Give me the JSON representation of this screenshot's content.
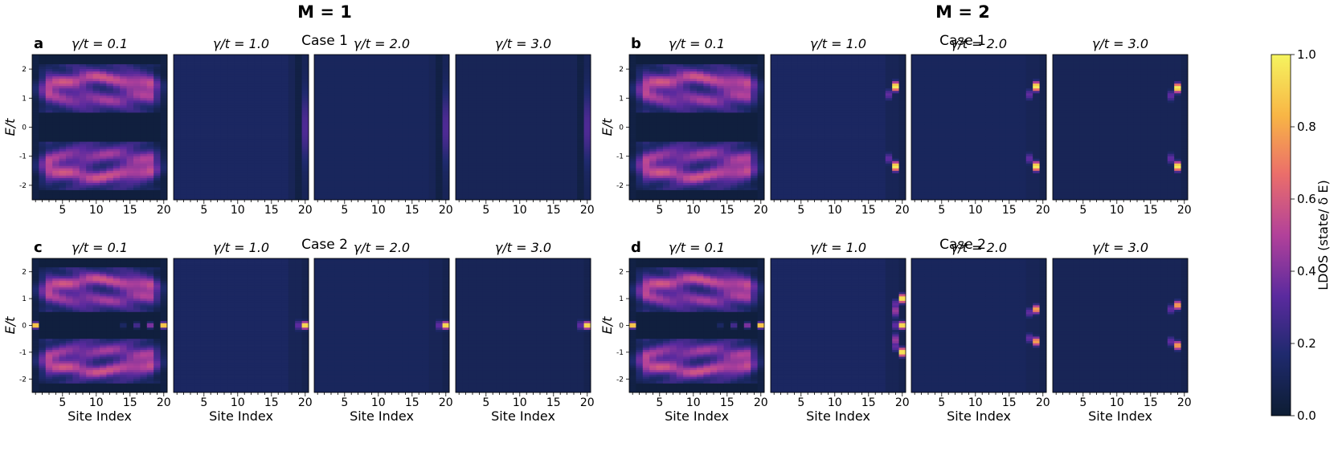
{
  "figure": {
    "group_titles": [
      "M = 1",
      "M = 2"
    ],
    "case_labels": [
      "Case 1",
      "Case 2"
    ],
    "panel_letters": [
      "a",
      "b",
      "c",
      "d"
    ]
  },
  "chart_data": {
    "type": "heatmap",
    "x_label": "Site Index",
    "y_label": "E/t",
    "x_ticks": [
      5,
      10,
      15,
      20
    ],
    "x_range": [
      0.5,
      20.5
    ],
    "y_ticks": [
      2,
      1,
      0,
      -1,
      -2
    ],
    "y_range": [
      -2.5,
      2.5
    ],
    "gamma_labels": [
      "γ/t = 0.1",
      "γ/t = 1.0",
      "γ/t = 2.0",
      "γ/t = 3.0"
    ],
    "gamma_values": [
      0.1,
      1.0,
      2.0,
      3.0
    ],
    "colorbar": {
      "label": "LDOS (state/ δ E)",
      "ticks": [
        "0.0",
        "0.2",
        "0.4",
        "0.6",
        "0.8",
        "1.0"
      ],
      "range": [
        0.0,
        1.0
      ],
      "colormap": [
        "#0d1d33",
        "#1f2a6e",
        "#5a2a9e",
        "#b2419a",
        "#eb6e6a",
        "#f8b545",
        "#f5f45f"
      ]
    },
    "panels": [
      {
        "letter": "a",
        "M": 1,
        "case": "Case 1",
        "subplots": [
          {
            "gamma": 0.1,
            "feature": "bulk bands with edge spectral weight",
            "bands": [
              -2.0,
              -0.6,
              0.6,
              2.0
            ],
            "edge_state_energy": [],
            "peak_ldos": 0.55
          },
          {
            "gamma": 1.0,
            "feature": "flat background, weak edge feature at site 20",
            "bands": [],
            "edge_state_energy": [],
            "peak_ldos": 0.25
          },
          {
            "gamma": 2.0,
            "feature": "flat background, weak edge feature at site 20",
            "bands": [],
            "edge_state_energy": [],
            "peak_ldos": 0.25
          },
          {
            "gamma": 3.0,
            "feature": "flat background, weak edge feature at site 20",
            "bands": [],
            "edge_state_energy": [],
            "peak_ldos": 0.25
          }
        ]
      },
      {
        "letter": "b",
        "M": 2,
        "case": "Case 1",
        "subplots": [
          {
            "gamma": 0.1,
            "feature": "bulk bands with edge spectral weight",
            "bands": [
              -2.0,
              -0.6,
              0.6,
              2.0
            ],
            "edge_state_energy": [],
            "peak_ldos": 0.6
          },
          {
            "gamma": 1.0,
            "feature": "bright edge states at site 19",
            "bands": [],
            "edge_state_energy": [
              1.4,
              -1.35
            ],
            "peak_ldos": 1.0
          },
          {
            "gamma": 2.0,
            "feature": "bright edge states at site 19",
            "bands": [],
            "edge_state_energy": [
              1.4,
              -1.35
            ],
            "peak_ldos": 1.0
          },
          {
            "gamma": 3.0,
            "feature": "bright edge states at site 19",
            "bands": [],
            "edge_state_energy": [
              1.35,
              -1.35
            ],
            "peak_ldos": 1.0
          }
        ]
      },
      {
        "letter": "c",
        "M": 1,
        "case": "Case 2",
        "subplots": [
          {
            "gamma": 0.1,
            "feature": "bulk bands with zero-energy edge modes",
            "bands": [
              -2.0,
              -0.6,
              0.6,
              2.0
            ],
            "edge_state_energy": [
              0.0
            ],
            "peak_ldos": 1.0
          },
          {
            "gamma": 1.0,
            "feature": "zero-energy mode at site 20",
            "bands": [],
            "edge_state_energy": [
              0.0
            ],
            "peak_ldos": 1.0
          },
          {
            "gamma": 2.0,
            "feature": "zero-energy mode at site 20",
            "bands": [],
            "edge_state_energy": [
              0.0
            ],
            "peak_ldos": 1.0
          },
          {
            "gamma": 3.0,
            "feature": "zero-energy mode at site 20",
            "bands": [],
            "edge_state_energy": [
              0.0
            ],
            "peak_ldos": 1.0
          }
        ]
      },
      {
        "letter": "d",
        "M": 2,
        "case": "Case 2",
        "subplots": [
          {
            "gamma": 0.1,
            "feature": "bulk bands with zero-energy edge modes",
            "bands": [
              -2.0,
              -0.6,
              0.6,
              2.0
            ],
            "edge_state_energy": [
              0.0
            ],
            "peak_ldos": 1.0
          },
          {
            "gamma": 1.0,
            "feature": "arc-shaped edge states near sites 18-20",
            "bands": [],
            "edge_state_energy": [
              1.0,
              0.0,
              -1.0
            ],
            "peak_ldos": 1.0
          },
          {
            "gamma": 2.0,
            "feature": "arc-shaped edge states near sites 18-20",
            "bands": [],
            "edge_state_energy": [
              0.6,
              -0.6
            ],
            "peak_ldos": 0.8
          },
          {
            "gamma": 3.0,
            "feature": "arc-shaped edge states near sites 18-20",
            "bands": [],
            "edge_state_energy": [
              0.75,
              -0.75
            ],
            "peak_ldos": 0.8
          }
        ]
      }
    ]
  }
}
